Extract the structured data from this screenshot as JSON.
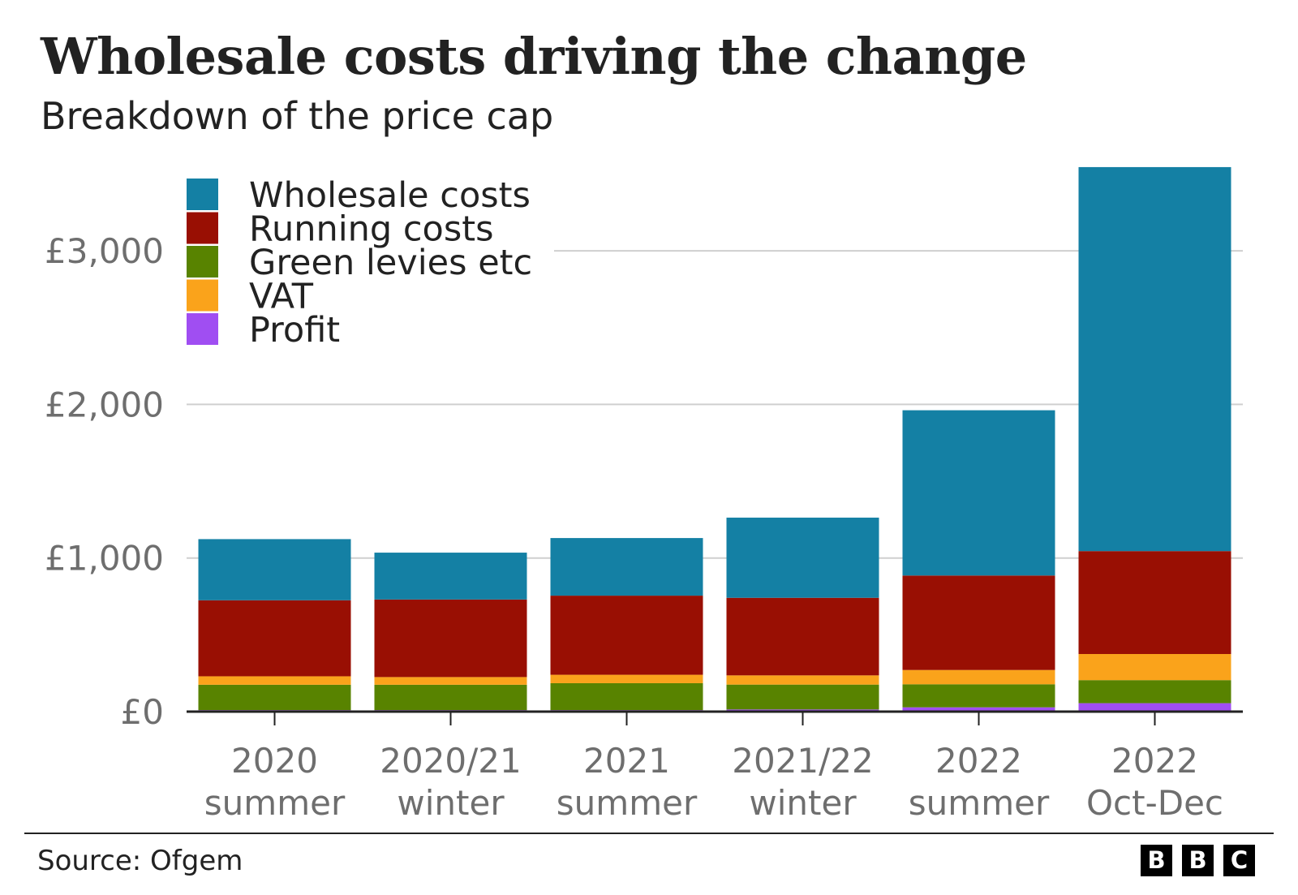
{
  "title": "Wholesale costs driving the change",
  "subtitle": "Breakdown of the price cap",
  "source": "Source: Ofgem",
  "logo": {
    "letters": [
      "B",
      "B",
      "C"
    ]
  },
  "chart_data": {
    "type": "bar",
    "stacked": true,
    "categories": [
      [
        "2020",
        "summer"
      ],
      [
        "2020/21",
        "winter"
      ],
      [
        "2021",
        "summer"
      ],
      [
        "2021/22",
        "winter"
      ],
      [
        "2022",
        "summer"
      ],
      [
        "2022",
        "Oct-Dec"
      ]
    ],
    "series": [
      {
        "name": "Profit",
        "color": "#a04ef2",
        "values": [
          10,
          10,
          10,
          14,
          28,
          55
        ]
      },
      {
        "name": "Green levies etc",
        "color": "#588300",
        "values": [
          165,
          165,
          175,
          162,
          150,
          150
        ]
      },
      {
        "name": "VAT",
        "color": "#faa31b",
        "values": [
          55,
          50,
          55,
          60,
          93,
          170
        ]
      },
      {
        "name": "Running costs",
        "color": "#990f03",
        "values": [
          495,
          505,
          515,
          505,
          615,
          670
        ]
      },
      {
        "name": "Wholesale costs",
        "color": "#1480a4",
        "values": [
          398,
          305,
          375,
          522,
          1076,
          2500
        ]
      }
    ],
    "legend_order": [
      "Wholesale costs",
      "Running costs",
      "Green levies etc",
      "VAT",
      "Profit"
    ],
    "legend_position": "top-left",
    "yticks": [
      {
        "value": 0,
        "label": "£0"
      },
      {
        "value": 1000,
        "label": "£1,000"
      },
      {
        "value": 2000,
        "label": "£2,000"
      },
      {
        "value": 3000,
        "label": "£3,000"
      }
    ],
    "ylim": [
      0,
      3600
    ],
    "grid": true,
    "xlabel": "",
    "ylabel": ""
  }
}
